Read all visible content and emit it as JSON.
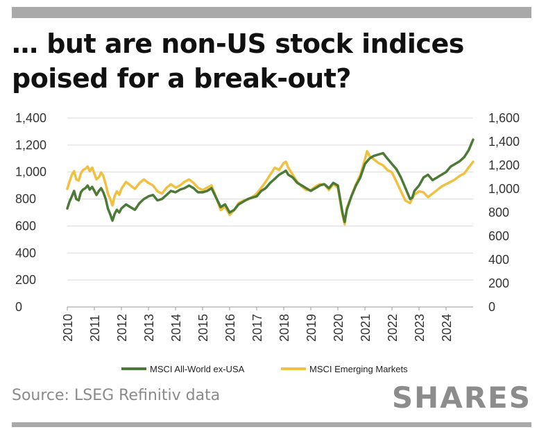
{
  "title": "… but are non-US stock indices poised for a break-out?",
  "source": "Source: LSEG Refinitiv data",
  "logo": "SHARES",
  "chart_data": {
    "type": "line",
    "title": "… but are non-US stock indices poised for a break-out?",
    "xlabel": "",
    "ylabel": "",
    "x_range": [
      2010,
      2025
    ],
    "x_ticks": [
      "2010",
      "2011",
      "2012",
      "2013",
      "2014",
      "2015",
      "2016",
      "2017",
      "2018",
      "2019",
      "2020",
      "2021",
      "2022",
      "2023",
      "2024"
    ],
    "y_left_range": [
      0,
      1400
    ],
    "y_left_ticks": [
      "0",
      "200",
      "400",
      "600",
      "800",
      "1,000",
      "1,200",
      "1,400"
    ],
    "y_right_range": [
      0,
      1600
    ],
    "y_right_ticks": [
      "0",
      "200",
      "400",
      "600",
      "800",
      "1,000",
      "1,200",
      "1,400",
      "1,600"
    ],
    "grid": "horizontal",
    "legend_position": "bottom",
    "series": [
      {
        "name": "MSCI All-World ex-USA",
        "axis": "left",
        "color": "#4a7a35",
        "x": [
          2010.0,
          2010.08,
          2010.17,
          2010.25,
          2010.33,
          2010.42,
          2010.5,
          2010.58,
          2010.67,
          2010.75,
          2010.83,
          2010.92,
          2011.0,
          2011.08,
          2011.17,
          2011.25,
          2011.33,
          2011.42,
          2011.5,
          2011.58,
          2011.67,
          2011.75,
          2011.83,
          2011.92,
          2012.0,
          2012.17,
          2012.33,
          2012.5,
          2012.67,
          2012.83,
          2013.0,
          2013.17,
          2013.33,
          2013.5,
          2013.67,
          2013.83,
          2014.0,
          2014.17,
          2014.33,
          2014.5,
          2014.67,
          2014.83,
          2015.0,
          2015.17,
          2015.33,
          2015.5,
          2015.67,
          2015.83,
          2016.0,
          2016.17,
          2016.33,
          2016.5,
          2016.67,
          2016.83,
          2017.0,
          2017.17,
          2017.33,
          2017.5,
          2017.67,
          2017.83,
          2018.0,
          2018.08,
          2018.17,
          2018.33,
          2018.5,
          2018.67,
          2018.83,
          2019.0,
          2019.17,
          2019.33,
          2019.5,
          2019.67,
          2019.83,
          2020.0,
          2020.17,
          2020.25,
          2020.33,
          2020.5,
          2020.67,
          2020.83,
          2021.0,
          2021.17,
          2021.33,
          2021.5,
          2021.67,
          2021.83,
          2022.0,
          2022.17,
          2022.33,
          2022.5,
          2022.67,
          2022.75,
          2022.83,
          2023.0,
          2023.17,
          2023.33,
          2023.5,
          2023.67,
          2023.83,
          2024.0,
          2024.17,
          2024.33,
          2024.5,
          2024.67,
          2024.83,
          2025.0
        ],
        "values": [
          730,
          780,
          820,
          860,
          800,
          790,
          850,
          870,
          880,
          900,
          870,
          890,
          860,
          830,
          860,
          880,
          850,
          800,
          730,
          690,
          640,
          690,
          720,
          700,
          730,
          760,
          740,
          720,
          770,
          800,
          820,
          830,
          790,
          800,
          830,
          860,
          850,
          870,
          880,
          900,
          880,
          850,
          850,
          860,
          880,
          810,
          740,
          760,
          700,
          720,
          760,
          780,
          800,
          810,
          820,
          860,
          880,
          920,
          950,
          980,
          1000,
          1010,
          980,
          960,
          920,
          900,
          880,
          860,
          880,
          900,
          910,
          880,
          920,
          900,
          700,
          630,
          720,
          820,
          900,
          960,
          1060,
          1100,
          1120,
          1130,
          1140,
          1100,
          1060,
          1020,
          960,
          880,
          800,
          810,
          860,
          900,
          960,
          980,
          940,
          960,
          980,
          1000,
          1040,
          1060,
          1080,
          1110,
          1160,
          1240
        ]
      },
      {
        "name": "MSCI Emerging Markets",
        "axis": "right",
        "color": "#f0c040",
        "x": [
          2010.0,
          2010.08,
          2010.17,
          2010.25,
          2010.33,
          2010.42,
          2010.5,
          2010.58,
          2010.67,
          2010.75,
          2010.83,
          2010.92,
          2011.0,
          2011.08,
          2011.17,
          2011.25,
          2011.33,
          2011.42,
          2011.5,
          2011.58,
          2011.67,
          2011.75,
          2011.83,
          2011.92,
          2012.0,
          2012.17,
          2012.33,
          2012.5,
          2012.67,
          2012.83,
          2013.0,
          2013.17,
          2013.33,
          2013.5,
          2013.67,
          2013.83,
          2014.0,
          2014.17,
          2014.33,
          2014.5,
          2014.67,
          2014.83,
          2015.0,
          2015.17,
          2015.33,
          2015.5,
          2015.67,
          2015.83,
          2016.0,
          2016.17,
          2016.33,
          2016.5,
          2016.67,
          2016.83,
          2017.0,
          2017.17,
          2017.33,
          2017.5,
          2017.67,
          2017.83,
          2018.0,
          2018.08,
          2018.17,
          2018.33,
          2018.5,
          2018.67,
          2018.83,
          2019.0,
          2019.17,
          2019.33,
          2019.5,
          2019.67,
          2019.83,
          2020.0,
          2020.17,
          2020.25,
          2020.33,
          2020.5,
          2020.67,
          2020.83,
          2021.0,
          2021.08,
          2021.17,
          2021.33,
          2021.5,
          2021.67,
          2021.83,
          2022.0,
          2022.17,
          2022.33,
          2022.5,
          2022.67,
          2022.75,
          2022.83,
          2023.0,
          2023.17,
          2023.33,
          2023.5,
          2023.67,
          2023.83,
          2024.0,
          2024.17,
          2024.33,
          2024.5,
          2024.67,
          2024.83,
          2025.0
        ],
        "values": [
          1000,
          1060,
          1120,
          1150,
          1080,
          1070,
          1130,
          1160,
          1170,
          1190,
          1150,
          1180,
          1130,
          1080,
          1100,
          1140,
          1110,
          1040,
          960,
          920,
          860,
          940,
          980,
          950,
          1000,
          1060,
          1030,
          1000,
          1050,
          1080,
          1050,
          1030,
          980,
          960,
          1010,
          1040,
          1010,
          1030,
          1060,
          1080,
          1050,
          1010,
          990,
          1010,
          1030,
          930,
          820,
          850,
          780,
          820,
          880,
          900,
          910,
          930,
          960,
          1010,
          1060,
          1120,
          1180,
          1160,
          1220,
          1230,
          1180,
          1120,
          1060,
          1020,
          990,
          990,
          1020,
          1040,
          1040,
          990,
          1040,
          1010,
          780,
          700,
          840,
          940,
          1040,
          1120,
          1250,
          1320,
          1280,
          1250,
          1220,
          1200,
          1160,
          1140,
          1060,
          980,
          900,
          880,
          920,
          950,
          980,
          970,
          930,
          960,
          990,
          1020,
          1040,
          1060,
          1080,
          1110,
          1130,
          1180,
          1230
        ]
      }
    ]
  }
}
